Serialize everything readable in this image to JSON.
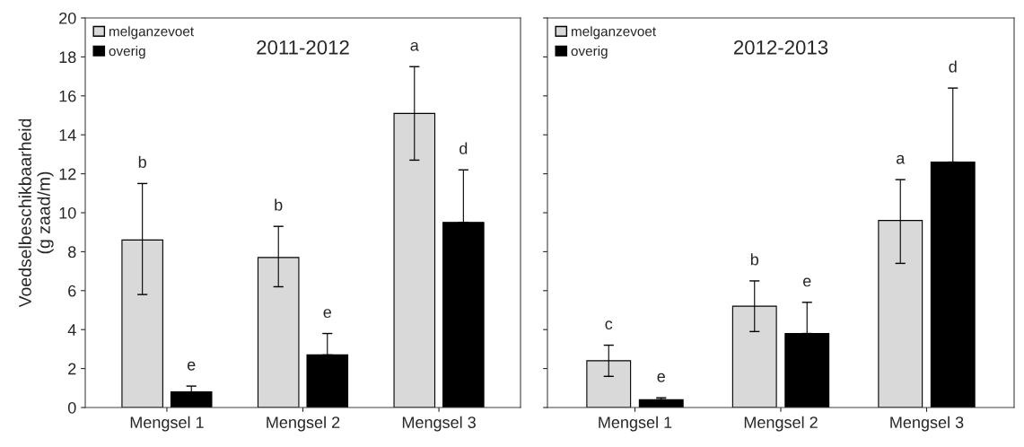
{
  "chart_data": [
    {
      "type": "bar",
      "title": "2011-2012",
      "ylabel": "Voedselbeschikbaarheid\n(g zaad/m)",
      "categories": [
        "Mengsel 1",
        "Mengsel 2",
        "Mengsel 3"
      ],
      "ylim": [
        0,
        20
      ],
      "yticks": [
        0,
        2,
        4,
        6,
        8,
        10,
        12,
        14,
        16,
        18,
        20
      ],
      "grid": false,
      "legend": "top left",
      "series": [
        {
          "name": "melganzevoet",
          "color": "#d9d9d9",
          "values": [
            8.6,
            7.7,
            15.1
          ],
          "errors": [
            [
              5.8,
              11.5
            ],
            [
              6.2,
              9.3
            ],
            [
              12.7,
              17.5
            ]
          ]
        },
        {
          "name": "overig",
          "color": "#000000",
          "values": [
            0.8,
            2.7,
            9.5
          ],
          "errors": [
            [
              0.8,
              1.1
            ],
            [
              2.7,
              3.8
            ],
            [
              9.5,
              12.2
            ]
          ]
        }
      ],
      "annotations": [
        "b",
        "e",
        "b",
        "e",
        "a",
        "d"
      ]
    },
    {
      "type": "bar",
      "title": "2012-2013",
      "categories": [
        "Mengsel 1",
        "Mengsel 2",
        "Mengsel 3"
      ],
      "ylim": [
        0,
        20
      ],
      "yticks": [
        0,
        2,
        4,
        6,
        8,
        10,
        12,
        14,
        16,
        18,
        20
      ],
      "tick_labels": "x",
      "grid": false,
      "legend": "top left",
      "series": [
        {
          "name": "melganzevoet",
          "color": "#d9d9d9",
          "values": [
            2.4,
            5.2,
            9.6
          ],
          "errors": [
            [
              1.6,
              3.2
            ],
            [
              3.9,
              6.5
            ],
            [
              7.4,
              11.7
            ]
          ]
        },
        {
          "name": "overig",
          "color": "#000000",
          "values": [
            0.4,
            3.8,
            12.6
          ],
          "errors": [
            [
              0.4,
              0.5
            ],
            [
              3.8,
              5.4
            ],
            [
              12.6,
              16.4
            ]
          ]
        }
      ],
      "annotations": [
        "c",
        "e",
        "b",
        "e",
        "a",
        "d"
      ]
    }
  ]
}
